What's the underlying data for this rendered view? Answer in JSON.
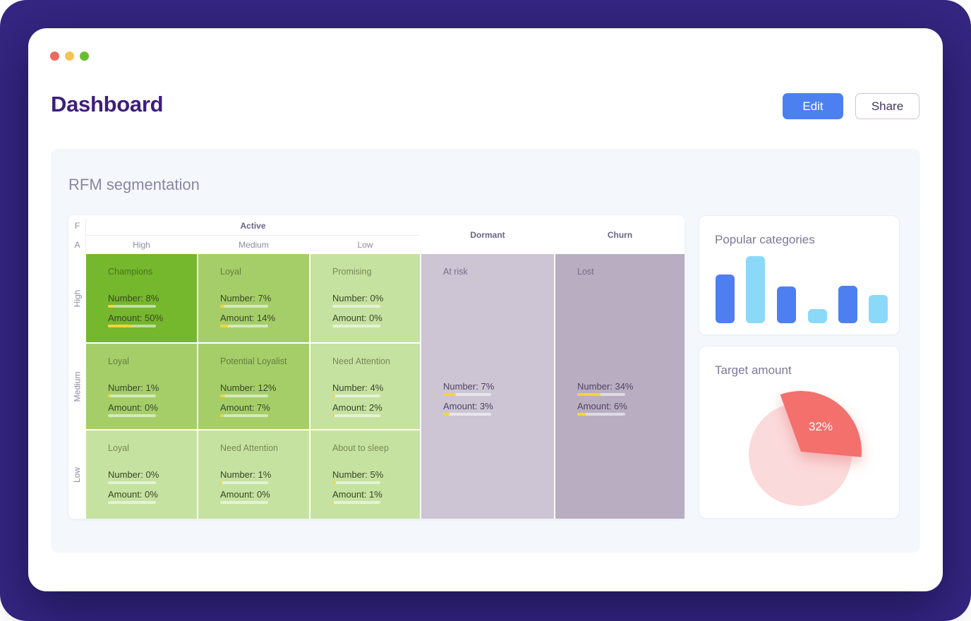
{
  "header": {
    "title": "Dashboard",
    "edit_label": "Edit",
    "share_label": "Share"
  },
  "panel": {
    "title": "RFM segmentation"
  },
  "rfm": {
    "corner_f": "F",
    "corner_a": "A",
    "group_active": "Active",
    "group_dormant": "Dormant",
    "group_churn": "Churn",
    "active_columns": [
      "High",
      "Medium",
      "Low"
    ],
    "row_labels": [
      "High",
      "Medium",
      "Low"
    ],
    "metric_labels": {
      "number": "Number",
      "amount": "Amount"
    },
    "rows": [
      {
        "label": "High",
        "cells": [
          {
            "title": "Champions",
            "tone": "dark",
            "number": "8%",
            "amount": "50%",
            "number_bar": 12,
            "amount_bar": 48
          },
          {
            "title": "Loyal",
            "tone": "medium",
            "number": "7%",
            "amount": "14%",
            "number_bar": 9,
            "amount_bar": 16
          },
          {
            "title": "Promising",
            "tone": "light",
            "number": "0%",
            "amount": "0%",
            "number_bar": 0,
            "amount_bar": 0
          }
        ]
      },
      {
        "label": "Medium",
        "cells": [
          {
            "title": "Loyal",
            "tone": "medium",
            "number": "1%",
            "amount": "0%",
            "number_bar": 6,
            "amount_bar": 0
          },
          {
            "title": "Potential Loyalist",
            "tone": "medium",
            "number": "12%",
            "amount": "7%",
            "number_bar": 11,
            "amount_bar": 9
          },
          {
            "title": "Need Attention",
            "tone": "light",
            "number": "4%",
            "amount": "2%",
            "number_bar": 6,
            "amount_bar": 4
          }
        ]
      },
      {
        "label": "Low",
        "cells": [
          {
            "title": "Loyal",
            "tone": "light",
            "number": "0%",
            "amount": "0%",
            "number_bar": 0,
            "amount_bar": 0
          },
          {
            "title": "Need Attention",
            "tone": "light",
            "number": "1%",
            "amount": "0%",
            "number_bar": 4,
            "amount_bar": 0
          },
          {
            "title": "About to sleep",
            "tone": "light",
            "number": "5%",
            "amount": "1%",
            "number_bar": 7,
            "amount_bar": 3
          }
        ]
      }
    ],
    "dormant_cell": {
      "title": "At risk",
      "tone": "lavender",
      "number": "7%",
      "amount": "3%",
      "number_bar": 26,
      "amount_bar": 13
    },
    "churn_cell": {
      "title": "Lost",
      "tone": "mauve",
      "number": "34%",
      "amount": "6%",
      "number_bar": 49,
      "amount_bar": 17
    }
  },
  "popular_categories": {
    "title": "Popular categories",
    "chart_data": {
      "type": "bar",
      "values": [
        73,
        100,
        55,
        21,
        56,
        42
      ],
      "colors": [
        "#4D7FF0",
        "#8BD9F9",
        "#4D7FF0",
        "#8BD9F9",
        "#4D7FF0",
        "#8BD9F9"
      ],
      "title": "Popular categories",
      "xlabel": "",
      "ylabel": "",
      "ylim": [
        0,
        100
      ],
      "grid": false,
      "legend": false
    }
  },
  "target_amount": {
    "title": "Target amount",
    "value_label": "32%",
    "chart_data": {
      "type": "pie",
      "slices": [
        {
          "label": "32%",
          "value": 32,
          "color": "#F3706D",
          "exploded": true
        },
        {
          "label": "",
          "value": 68,
          "color": "#FBDADB",
          "exploded": false
        }
      ],
      "start_angle_deg": 110,
      "title": "Target amount"
    }
  },
  "colors": {
    "frame": "#352682",
    "accent_blue": "#4C80F1",
    "bar_blue": "#4D7FF0",
    "bar_light_blue": "#8BD9F9",
    "pie_red": "#F3706D",
    "pie_pink": "#FBDADB",
    "cell_dark_green": "#75B72D",
    "cell_medium_green": "#A5CE69",
    "cell_light_green": "#C6E2A1",
    "cell_lavender": "#CDC5D3",
    "cell_mauve": "#B9AEC1",
    "progress_yellow": "#F2D53C",
    "title_purple": "#3D1E7B",
    "traffic_red": "#EE6A60",
    "traffic_yellow": "#F5C44E",
    "traffic_green": "#68BE33"
  }
}
